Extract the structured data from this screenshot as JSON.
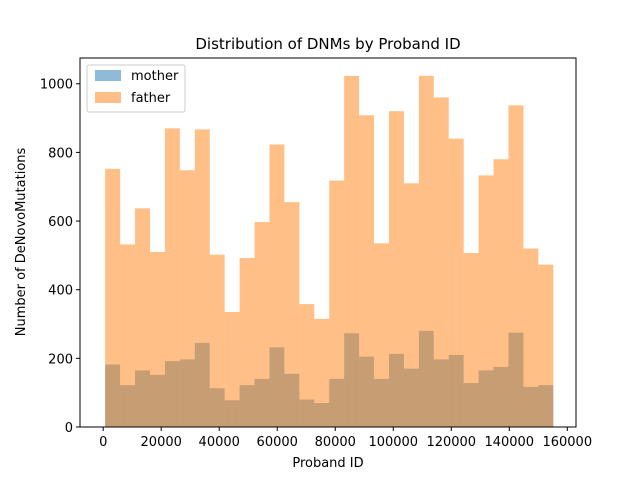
{
  "chart_data": {
    "type": "bar",
    "subtype": "overlaid-histogram",
    "title": "Distribution of DNMs by Proband ID",
    "xlabel": "Proband ID",
    "ylabel": "Number of DeNovoMutations",
    "xlim": [
      -8000,
      163000
    ],
    "ylim": [
      0,
      1075
    ],
    "xticks": [
      0,
      20000,
      40000,
      60000,
      80000,
      100000,
      120000,
      140000,
      160000
    ],
    "xtick_labels": [
      "0",
      "20000",
      "40000",
      "60000",
      "80000",
      "100000",
      "120000",
      "140000",
      "160000"
    ],
    "yticks": [
      0,
      200,
      400,
      600,
      800,
      1000
    ],
    "ytick_labels": [
      "0",
      "200",
      "400",
      "600",
      "800",
      "1000"
    ],
    "bins": [
      [
        675,
        5825
      ],
      [
        5825,
        10975
      ],
      [
        10975,
        16125
      ],
      [
        16125,
        21275
      ],
      [
        21275,
        26425
      ],
      [
        26425,
        31575
      ],
      [
        31575,
        36725
      ],
      [
        36725,
        41875
      ],
      [
        41875,
        47025
      ],
      [
        47025,
        52175
      ],
      [
        52175,
        57325
      ],
      [
        57325,
        62475
      ],
      [
        62475,
        67625
      ],
      [
        67625,
        72775
      ],
      [
        72775,
        77925
      ],
      [
        77925,
        83075
      ],
      [
        83075,
        88225
      ],
      [
        88225,
        93375
      ],
      [
        93375,
        98525
      ],
      [
        98525,
        103675
      ],
      [
        103675,
        108825
      ],
      [
        108825,
        113975
      ],
      [
        113975,
        119125
      ],
      [
        119125,
        124275
      ],
      [
        124275,
        129425
      ],
      [
        129425,
        134575
      ],
      [
        134575,
        139725
      ],
      [
        139725,
        144875
      ],
      [
        144875,
        150025
      ],
      [
        150025,
        155175
      ]
    ],
    "series": [
      {
        "name": "mother",
        "color": "#1f77b4",
        "alpha": 0.5,
        "values": [
          182,
          122,
          165,
          152,
          192,
          197,
          245,
          113,
          78,
          122,
          140,
          232,
          155,
          80,
          70,
          140,
          273,
          205,
          140,
          213,
          170,
          280,
          197,
          210,
          128,
          165,
          175,
          275,
          117,
          122
        ]
      },
      {
        "name": "father",
        "color": "#ff7f0e",
        "alpha": 0.5,
        "values": [
          752,
          532,
          637,
          510,
          870,
          748,
          867,
          502,
          335,
          492,
          597,
          823,
          655,
          358,
          315,
          718,
          1023,
          908,
          535,
          920,
          710,
          1023,
          960,
          840,
          507,
          733,
          780,
          937,
          520,
          473
        ]
      }
    ],
    "grid": false,
    "legend_position": "top-left"
  }
}
